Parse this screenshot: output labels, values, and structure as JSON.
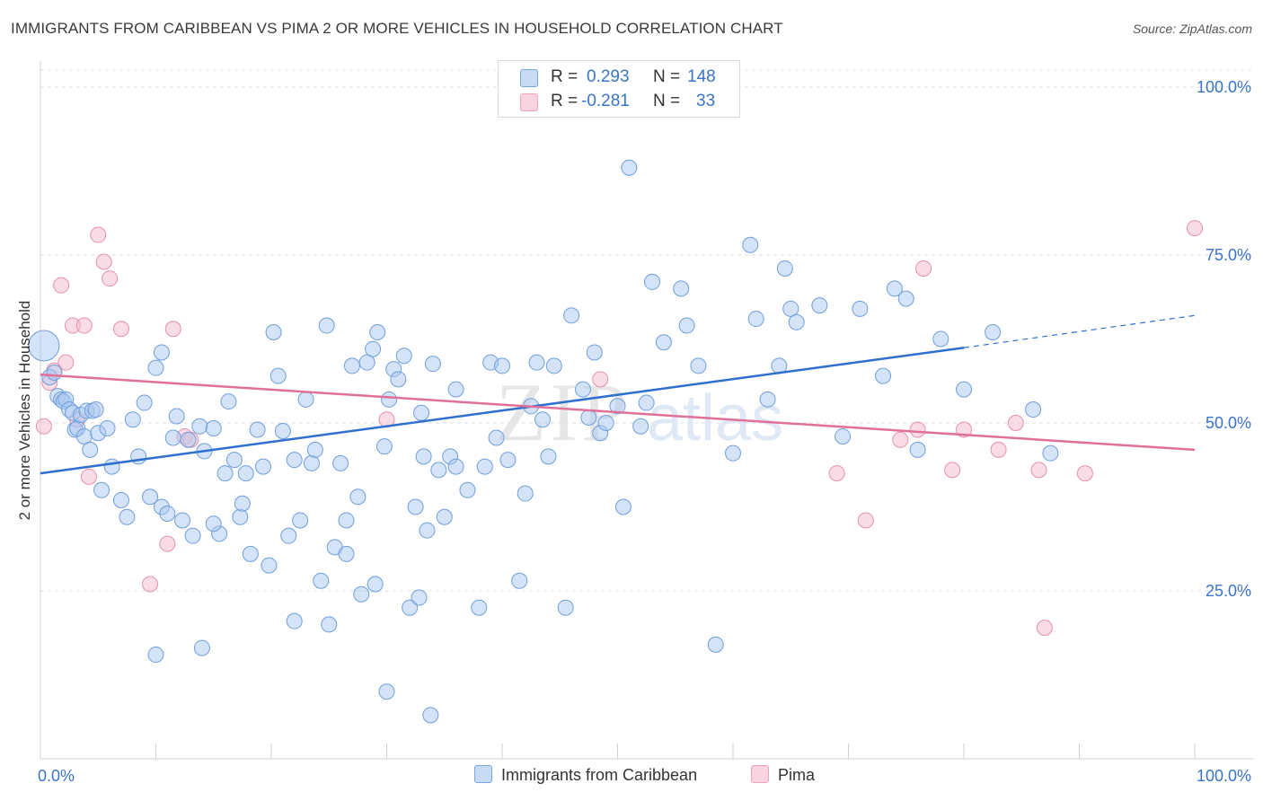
{
  "header": {
    "title": "IMMIGRANTS FROM CARIBBEAN VS PIMA 2 OR MORE VEHICLES IN HOUSEHOLD CORRELATION CHART",
    "source": "Source: ZipAtlas.com"
  },
  "legend": {
    "series1": {
      "r_label": "R =",
      "r_value": "0.293",
      "n_label": "N =",
      "n_value": "148"
    },
    "series2": {
      "r_label": "R =",
      "r_value": "-0.281",
      "n_label": "N =",
      "n_value": "33"
    }
  },
  "watermark": {
    "zip": "ZIP",
    "atlas": "atlas"
  },
  "colors": {
    "blue_fill": "#a9c8ef",
    "blue_line": "#2f6fcf",
    "pink_fill": "#f6bfd1",
    "pink_line": "#e0709a",
    "axis_text": "#3a74c8"
  },
  "chart_data": {
    "type": "scatter",
    "title": "IMMIGRANTS FROM CARIBBEAN VS PIMA 2 OR MORE VEHICLES IN HOUSEHOLD CORRELATION CHART",
    "xlabel": "",
    "ylabel": "2 or more Vehicles in Household",
    "xlim": [
      0,
      100
    ],
    "ylim": [
      0,
      105
    ],
    "x_tick_labels": [
      "0.0%",
      "100.0%"
    ],
    "y_ticks": [
      25,
      50,
      75,
      100
    ],
    "y_tick_labels": [
      "25.0%",
      "50.0%",
      "75.0%",
      "100.0%"
    ],
    "grid": true,
    "series": [
      {
        "name": "Immigrants from Caribbean",
        "color": "#a9c8ef",
        "trend": {
          "x0": 0,
          "y0": 42.5,
          "x1": 80,
          "y1": 61.2,
          "dash_to_x": 100,
          "dash_to_y": 66.0
        },
        "points": [
          [
            0.3,
            61.5
          ],
          [
            0.8,
            56.8
          ],
          [
            1.2,
            57.5
          ],
          [
            1.5,
            54.0
          ],
          [
            1.8,
            53.5
          ],
          [
            2.0,
            53.2
          ],
          [
            2.2,
            53.5
          ],
          [
            2.5,
            52.0
          ],
          [
            2.8,
            51.5
          ],
          [
            3.0,
            49.0
          ],
          [
            3.2,
            49.2
          ],
          [
            3.5,
            51.2
          ],
          [
            3.8,
            48.0
          ],
          [
            4.0,
            51.8
          ],
          [
            4.3,
            46.0
          ],
          [
            4.5,
            51.8
          ],
          [
            4.8,
            52.0
          ],
          [
            5.0,
            48.5
          ],
          [
            5.3,
            40.0
          ],
          [
            5.8,
            49.2
          ],
          [
            6.2,
            43.5
          ],
          [
            7.0,
            38.5
          ],
          [
            7.5,
            36.0
          ],
          [
            8.0,
            50.5
          ],
          [
            8.5,
            45.0
          ],
          [
            9.0,
            53.0
          ],
          [
            9.5,
            39.0
          ],
          [
            10.0,
            58.2
          ],
          [
            10.5,
            37.5
          ],
          [
            11.0,
            36.5
          ],
          [
            11.5,
            47.8
          ],
          [
            11.8,
            51.0
          ],
          [
            12.3,
            35.5
          ],
          [
            12.8,
            47.5
          ],
          [
            13.2,
            33.2
          ],
          [
            13.8,
            49.5
          ],
          [
            14.2,
            45.8
          ],
          [
            15.0,
            49.2
          ],
          [
            15.5,
            33.5
          ],
          [
            16.0,
            42.5
          ],
          [
            16.3,
            53.2
          ],
          [
            16.8,
            44.5
          ],
          [
            17.3,
            36.0
          ],
          [
            17.8,
            42.5
          ],
          [
            18.2,
            30.5
          ],
          [
            18.8,
            49.0
          ],
          [
            19.3,
            43.5
          ],
          [
            19.8,
            28.8
          ],
          [
            20.2,
            63.5
          ],
          [
            20.6,
            57.0
          ],
          [
            21.0,
            48.8
          ],
          [
            21.5,
            33.2
          ],
          [
            22.0,
            20.5
          ],
          [
            22.5,
            35.5
          ],
          [
            23.0,
            53.5
          ],
          [
            23.5,
            44.0
          ],
          [
            23.8,
            46.0
          ],
          [
            24.3,
            26.5
          ],
          [
            24.8,
            64.5
          ],
          [
            25.5,
            31.5
          ],
          [
            26.0,
            44.0
          ],
          [
            26.5,
            35.5
          ],
          [
            27.0,
            58.5
          ],
          [
            27.5,
            39.0
          ],
          [
            27.8,
            24.5
          ],
          [
            28.3,
            59.0
          ],
          [
            28.8,
            61.0
          ],
          [
            29.2,
            63.5
          ],
          [
            29.8,
            46.5
          ],
          [
            30.2,
            53.5
          ],
          [
            30.6,
            58.0
          ],
          [
            31.0,
            56.5
          ],
          [
            31.5,
            60.0
          ],
          [
            32.0,
            22.5
          ],
          [
            32.5,
            37.5
          ],
          [
            32.8,
            24.0
          ],
          [
            33.2,
            45.0
          ],
          [
            33.5,
            34.0
          ],
          [
            34.0,
            58.8
          ],
          [
            34.5,
            43.0
          ],
          [
            35.0,
            36.0
          ],
          [
            35.5,
            45.0
          ],
          [
            36.0,
            43.5
          ],
          [
            37.0,
            40.0
          ],
          [
            38.0,
            22.5
          ],
          [
            38.5,
            43.5
          ],
          [
            39.0,
            59.0
          ],
          [
            39.5,
            47.8
          ],
          [
            40.0,
            58.5
          ],
          [
            40.5,
            44.5
          ],
          [
            41.5,
            26.5
          ],
          [
            42.0,
            39.5
          ],
          [
            42.5,
            52.5
          ],
          [
            43.0,
            59.0
          ],
          [
            43.5,
            50.5
          ],
          [
            44.5,
            58.5
          ],
          [
            45.5,
            22.5
          ],
          [
            46.0,
            66.0
          ],
          [
            47.0,
            55.0
          ],
          [
            47.5,
            50.8
          ],
          [
            48.0,
            60.5
          ],
          [
            48.5,
            48.5
          ],
          [
            49.0,
            50.0
          ],
          [
            50.0,
            52.5
          ],
          [
            50.5,
            37.5
          ],
          [
            51.0,
            88.0
          ],
          [
            52.0,
            49.5
          ],
          [
            52.5,
            53.0
          ],
          [
            53.0,
            71.0
          ],
          [
            54.0,
            62.0
          ],
          [
            55.5,
            70.0
          ],
          [
            56.0,
            64.5
          ],
          [
            57.0,
            58.5
          ],
          [
            58.5,
            17.0
          ],
          [
            60.0,
            45.5
          ],
          [
            61.5,
            76.5
          ],
          [
            62.0,
            65.5
          ],
          [
            63.0,
            53.5
          ],
          [
            64.0,
            58.5
          ],
          [
            64.5,
            73.0
          ],
          [
            65.0,
            67.0
          ],
          [
            65.5,
            65.0
          ],
          [
            67.5,
            67.5
          ],
          [
            69.5,
            48.0
          ],
          [
            71.0,
            67.0
          ],
          [
            73.0,
            57.0
          ],
          [
            74.0,
            70.0
          ],
          [
            75.0,
            68.5
          ],
          [
            76.0,
            46.0
          ],
          [
            78.0,
            62.5
          ],
          [
            80.0,
            55.0
          ],
          [
            82.5,
            63.5
          ],
          [
            86.0,
            52.0
          ],
          [
            87.5,
            45.5
          ],
          [
            10.5,
            60.5
          ],
          [
            15.0,
            35.0
          ],
          [
            17.5,
            38.0
          ],
          [
            25.0,
            20.0
          ],
          [
            29.0,
            26.0
          ],
          [
            33.8,
            6.5
          ],
          [
            30.0,
            10.0
          ],
          [
            10.0,
            15.5
          ],
          [
            14.0,
            16.5
          ],
          [
            26.5,
            30.5
          ],
          [
            36.0,
            55.0
          ],
          [
            44.0,
            45.0
          ],
          [
            33.0,
            51.5
          ],
          [
            22.0,
            44.5
          ]
        ]
      },
      {
        "name": "Pima",
        "color": "#f6bfd1",
        "trend": {
          "x0": 0,
          "y0": 57.2,
          "x1": 100,
          "y1": 46.0
        },
        "points": [
          [
            0.3,
            49.5
          ],
          [
            0.8,
            56.0
          ],
          [
            1.2,
            57.8
          ],
          [
            1.8,
            70.5
          ],
          [
            2.2,
            59.0
          ],
          [
            2.8,
            64.5
          ],
          [
            3.2,
            50.5
          ],
          [
            3.8,
            64.5
          ],
          [
            4.2,
            42.0
          ],
          [
            5.0,
            78.0
          ],
          [
            5.5,
            74.0
          ],
          [
            6.0,
            71.5
          ],
          [
            7.0,
            64.0
          ],
          [
            9.5,
            26.0
          ],
          [
            11.0,
            32.0
          ],
          [
            11.5,
            64.0
          ],
          [
            12.5,
            48.0
          ],
          [
            13.0,
            47.5
          ],
          [
            30.0,
            50.5
          ],
          [
            48.5,
            56.5
          ],
          [
            69.0,
            42.5
          ],
          [
            71.5,
            35.5
          ],
          [
            74.5,
            47.5
          ],
          [
            76.0,
            49.0
          ],
          [
            76.5,
            73.0
          ],
          [
            79.0,
            43.0
          ],
          [
            80.0,
            49.0
          ],
          [
            83.0,
            46.0
          ],
          [
            84.5,
            50.0
          ],
          [
            86.5,
            43.0
          ],
          [
            87.0,
            19.5
          ],
          [
            90.5,
            42.5
          ],
          [
            100.0,
            79.0
          ]
        ]
      }
    ],
    "legend_position": "top-center",
    "bottom_legend": [
      "Immigrants from Caribbean",
      "Pima"
    ]
  }
}
